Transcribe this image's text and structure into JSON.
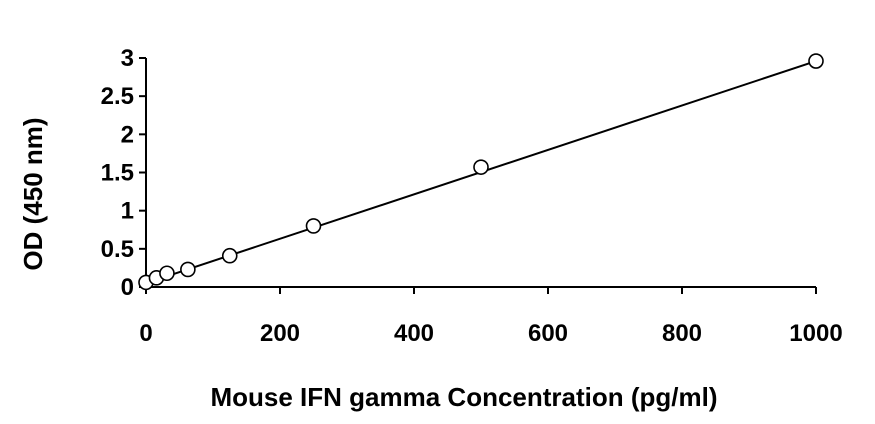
{
  "chart_data": {
    "type": "scatter",
    "title": "",
    "xlabel": "Mouse IFN gamma Concentration (pg/ml)",
    "ylabel": "OD (450 nm)",
    "xlim": [
      0,
      1000
    ],
    "ylim": [
      0,
      3
    ],
    "x_ticks": [
      "0",
      "200",
      "400",
      "600",
      "800",
      "1000"
    ],
    "x_tick_values": [
      0,
      200,
      400,
      600,
      800,
      1000
    ],
    "y_ticks": [
      "0",
      "0.5",
      "1",
      "1.5",
      "2",
      "2.5",
      "3"
    ],
    "y_tick_values": [
      0,
      0.5,
      1,
      1.5,
      2,
      2.5,
      3
    ],
    "grid": false,
    "legend": "none",
    "series": [
      {
        "x": [
          0,
          15.6,
          31.25,
          62.5,
          125,
          250,
          500,
          1000
        ],
        "y": [
          0.06,
          0.12,
          0.18,
          0.23,
          0.41,
          0.8,
          1.57,
          2.96
        ],
        "marker": "open-circle",
        "trendline": {
          "type": "linear",
          "x": [
            0,
            1000
          ],
          "y": [
            0.05,
            2.96
          ]
        }
      }
    ],
    "colors": {
      "marker_stroke": "#000000",
      "line": "#000000",
      "axis": "#000000"
    }
  }
}
